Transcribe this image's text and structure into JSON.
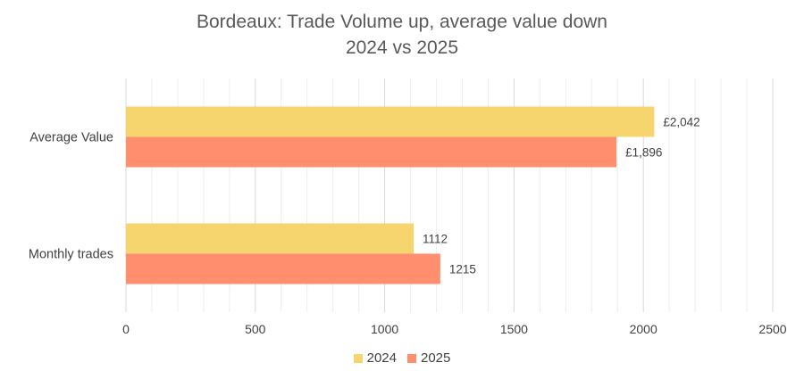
{
  "chart_data": {
    "type": "bar",
    "orientation": "horizontal",
    "title": "Bordeaux: Trade Volume up, average value down",
    "subtitle": "2024 vs 2025",
    "categories": [
      "Average Value",
      "Monthly trades"
    ],
    "series": [
      {
        "name": "2024",
        "color": "#F6D46E",
        "values": [
          2042,
          1112
        ],
        "labels": [
          "£2,042",
          "1112"
        ]
      },
      {
        "name": "2025",
        "color": "#FF8E6E",
        "values": [
          1896,
          1215
        ],
        "labels": [
          "£1,896",
          "1215"
        ]
      }
    ],
    "xlim": [
      0,
      2500
    ],
    "xticks": [
      0,
      500,
      1000,
      1500,
      2000,
      2500
    ],
    "xtick_labels": [
      "0",
      "500",
      "1000",
      "1500",
      "2000",
      "2500"
    ],
    "grid": true,
    "legend": "bottom",
    "xlabel": "",
    "ylabel": ""
  }
}
